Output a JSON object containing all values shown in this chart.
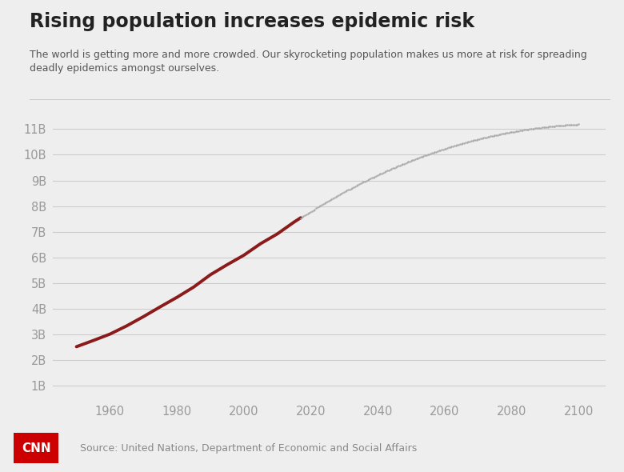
{
  "title": "Rising population increases epidemic risk",
  "subtitle": "The world is getting more and more crowded. Our skyrocketing population makes us more at risk for spreading\ndeadly epidemics amongst ourselves.",
  "source": "Source: United Nations, Department of Economic and Social Affairs",
  "background_color": "#eeeeee",
  "title_color": "#222222",
  "subtitle_color": "#555555",
  "source_color": "#888888",
  "historical_color": "#8b1a1a",
  "projection_color": "#aaaaaa",
  "grid_color": "#cccccc",
  "ytick_labels": [
    "1B",
    "2B",
    "3B",
    "4B",
    "5B",
    "6B",
    "7B",
    "8B",
    "9B",
    "10B",
    "11B"
  ],
  "ytick_values": [
    1,
    2,
    3,
    4,
    5,
    6,
    7,
    8,
    9,
    10,
    11
  ],
  "xtick_values": [
    1960,
    1980,
    2000,
    2020,
    2040,
    2060,
    2080,
    2100
  ],
  "xlim": [
    1943,
    2108
  ],
  "ylim": [
    0.5,
    11.8
  ],
  "historical_years": [
    1950,
    1955,
    1960,
    1965,
    1970,
    1975,
    1980,
    1985,
    1990,
    1995,
    2000,
    2005,
    2010,
    2015,
    2017
  ],
  "historical_pop": [
    2.53,
    2.77,
    3.02,
    3.34,
    3.7,
    4.08,
    4.45,
    4.85,
    5.33,
    5.72,
    6.09,
    6.54,
    6.92,
    7.38,
    7.55
  ],
  "projection_years": [
    2017,
    2020,
    2025,
    2030,
    2035,
    2040,
    2045,
    2050,
    2055,
    2060,
    2065,
    2070,
    2075,
    2080,
    2085,
    2090,
    2095,
    2100
  ],
  "projection_pop": [
    7.55,
    7.79,
    8.14,
    8.55,
    8.92,
    9.2,
    9.5,
    9.77,
    10.02,
    10.23,
    10.43,
    10.6,
    10.75,
    10.88,
    10.99,
    11.08,
    11.15,
    11.18
  ],
  "cnn_box_color": "#cc0000",
  "cnn_text_color": "#ffffff"
}
